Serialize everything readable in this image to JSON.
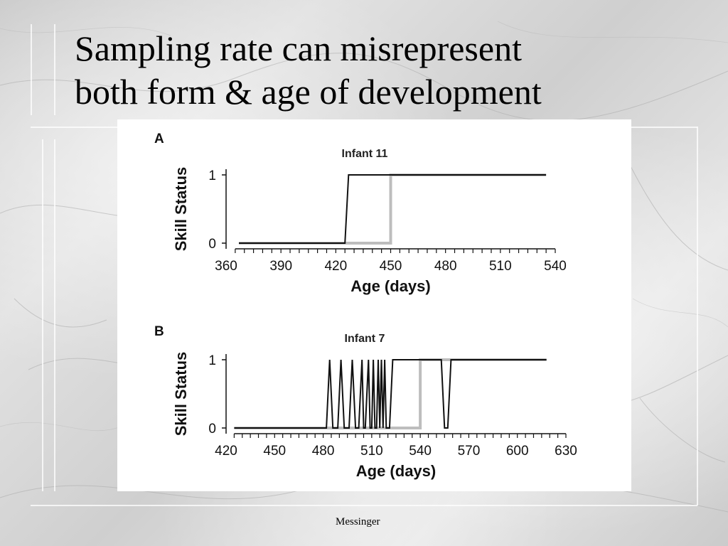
{
  "slide": {
    "title_line1": "Sampling rate can misrepresent",
    "title_line2": "both form & age of development",
    "footer": "Messinger"
  },
  "colors": {
    "black_series": "#111111",
    "gray_series": "#bdbdbd"
  },
  "chart_data": [
    {
      "type": "line",
      "panel_label": "A",
      "title": "Infant 11",
      "xlabel": "Age (days)",
      "ylabel": "Skill Status",
      "xlim": [
        360,
        540
      ],
      "ylim": [
        0,
        1
      ],
      "x_ticks": [
        360,
        390,
        420,
        450,
        480,
        510,
        540
      ],
      "y_ticks": [
        0,
        1
      ],
      "minor_tick_step": 5,
      "series": [
        {
          "color": "gray",
          "points": [
            [
              367,
              0
            ],
            [
              450,
              0
            ],
            [
              450,
              1
            ],
            [
              535,
              1
            ]
          ]
        },
        {
          "color": "black",
          "points": [
            [
              367,
              0
            ],
            [
              425,
              0
            ],
            [
              427,
              1
            ],
            [
              535,
              1
            ]
          ]
        }
      ]
    },
    {
      "type": "line",
      "panel_label": "B",
      "title": "Infant 7",
      "xlabel": "Age (days)",
      "ylabel": "Skill Status",
      "xlim": [
        420,
        630
      ],
      "ylim": [
        0,
        1
      ],
      "x_ticks": [
        420,
        450,
        480,
        510,
        540,
        570,
        600,
        630
      ],
      "y_ticks": [
        0,
        1
      ],
      "minor_tick_step": 5,
      "series": [
        {
          "color": "gray",
          "points": [
            [
              425,
              0
            ],
            [
              540,
              0
            ],
            [
              540,
              1
            ],
            [
              618,
              1
            ]
          ]
        },
        {
          "color": "black",
          "points": [
            [
              425,
              0
            ],
            [
              482,
              0
            ],
            [
              484,
              1
            ],
            [
              486,
              0
            ],
            [
              489,
              0
            ],
            [
              491,
              1
            ],
            [
              493,
              0
            ],
            [
              496,
              0
            ],
            [
              498,
              1
            ],
            [
              500,
              0
            ],
            [
              502,
              0
            ],
            [
              504,
              1
            ],
            [
              505,
              0
            ],
            [
              506,
              0
            ],
            [
              508,
              1
            ],
            [
              509,
              0
            ],
            [
              510,
              0
            ],
            [
              511,
              1
            ],
            [
              512,
              0
            ],
            [
              513,
              0
            ],
            [
              514,
              1
            ],
            [
              515,
              0
            ],
            [
              516,
              1
            ],
            [
              517,
              0
            ],
            [
              518,
              1
            ],
            [
              519,
              0
            ],
            [
              521,
              0
            ],
            [
              523,
              1
            ],
            [
              553,
              1
            ],
            [
              555,
              0
            ],
            [
              557,
              0
            ],
            [
              559,
              1
            ],
            [
              618,
              1
            ]
          ]
        }
      ]
    }
  ]
}
